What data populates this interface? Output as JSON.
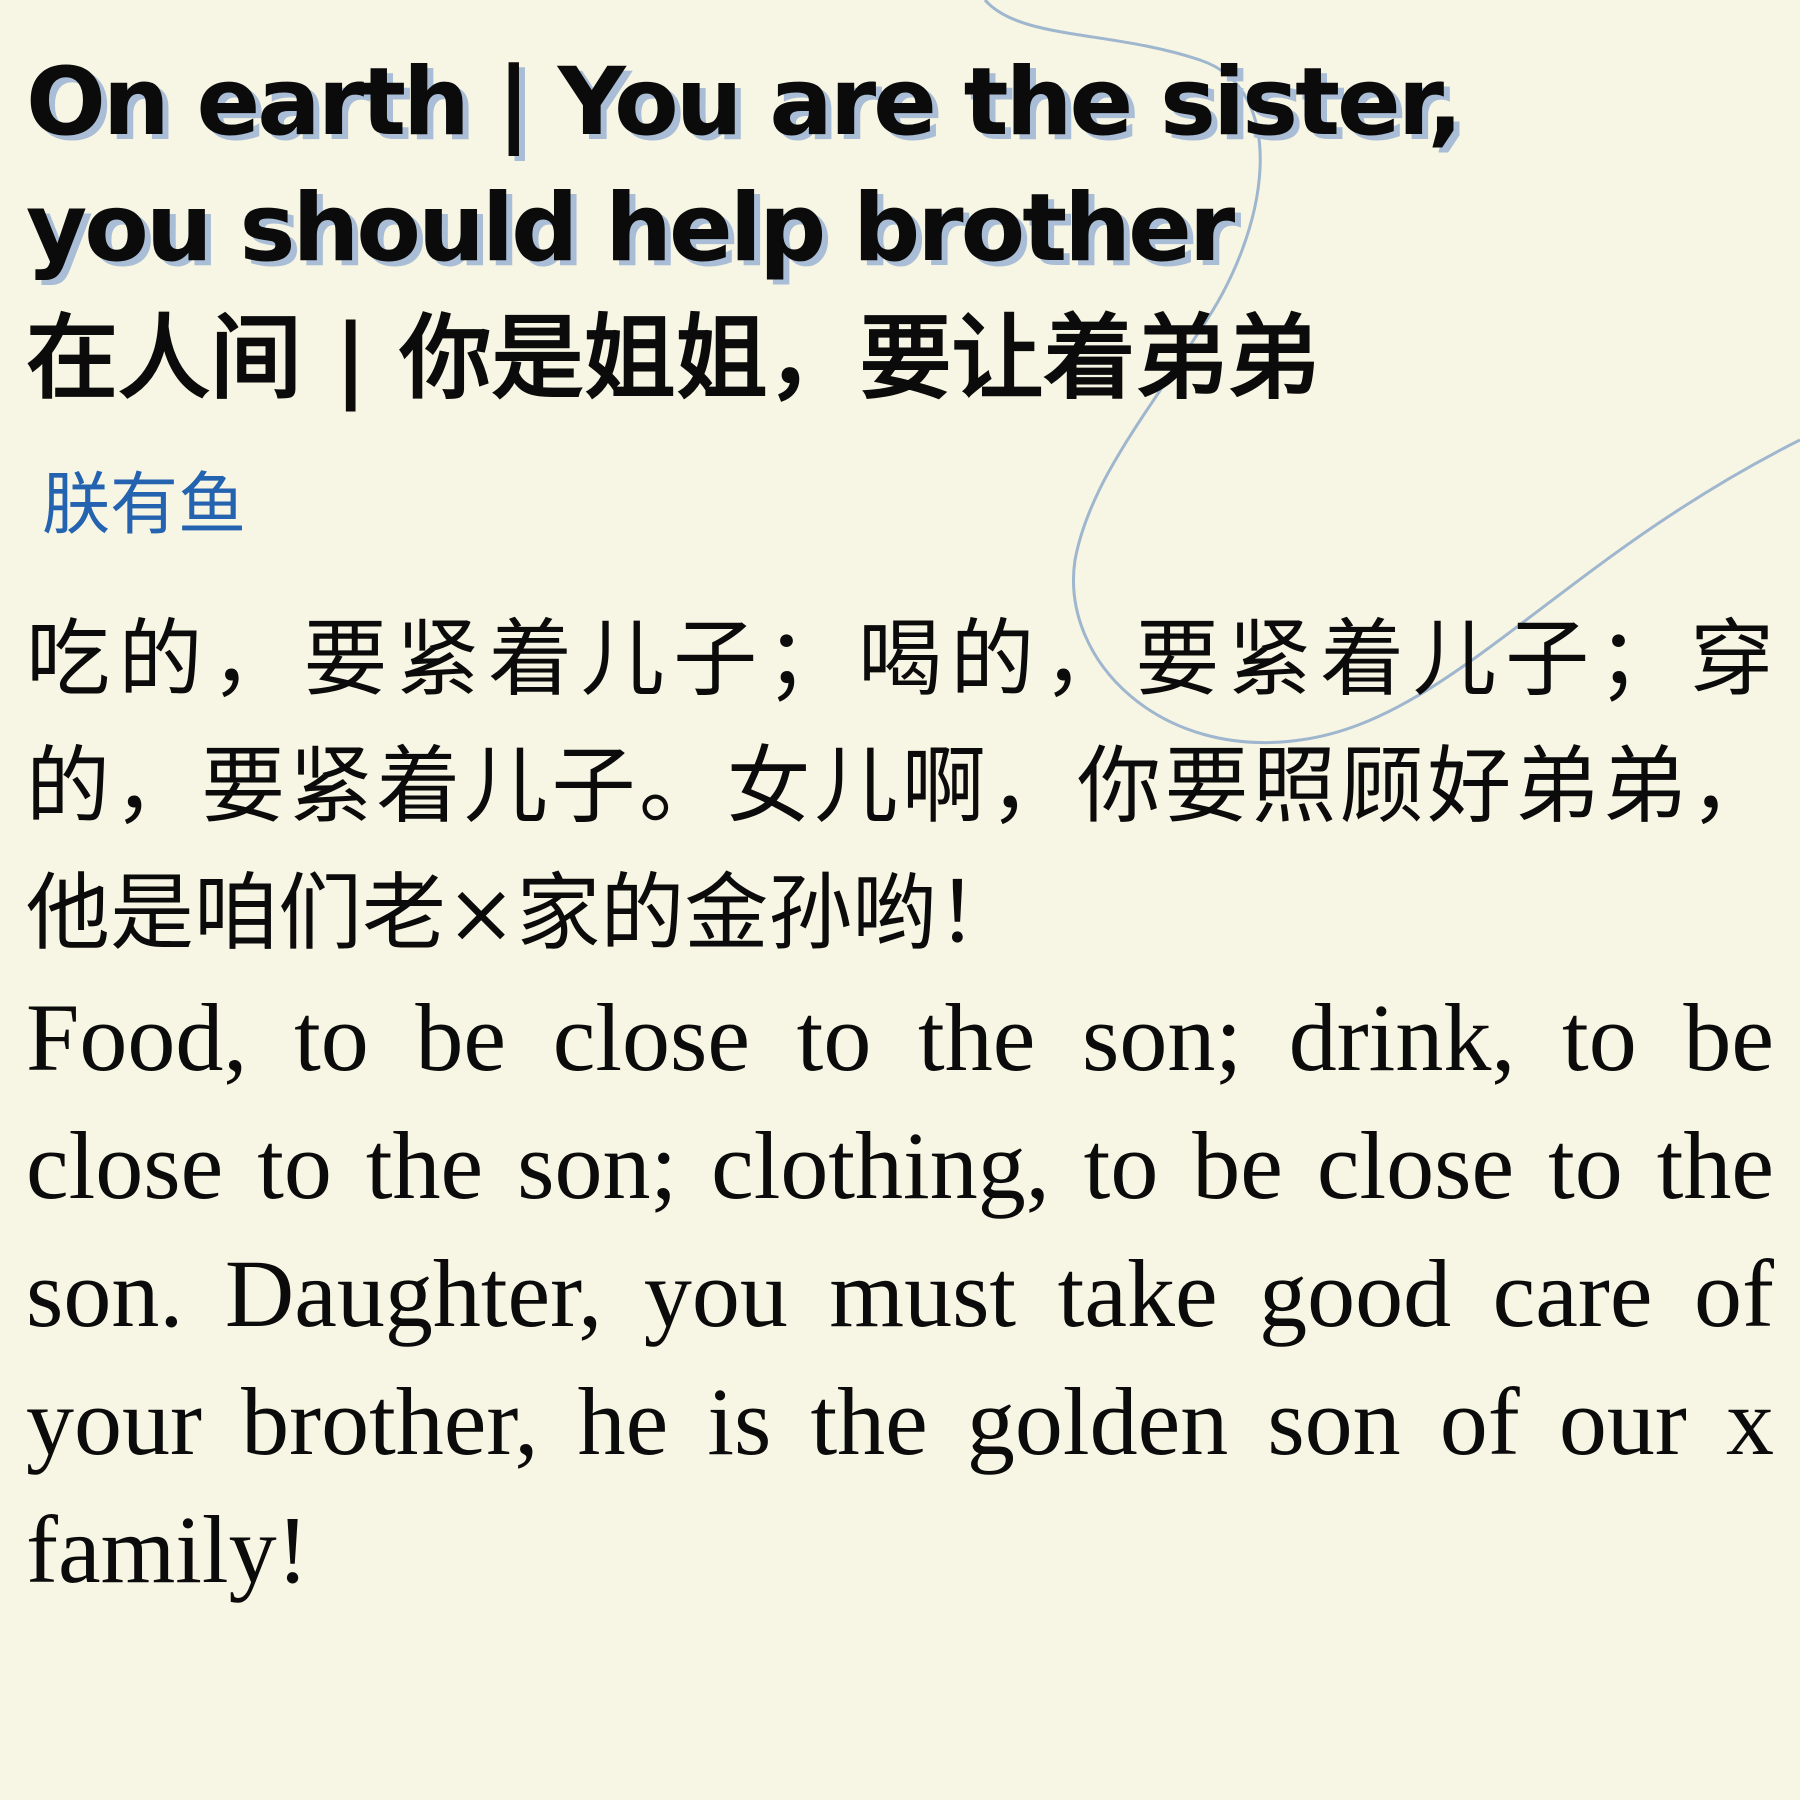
{
  "document": {
    "title_en_line1": "On earth | You are the sister,",
    "title_en_line2": "you should help brother",
    "title_zh": "在人间 | 你是姐姐，要让着弟弟",
    "author": "朕有鱼",
    "body_zh": "吃的，要紧着儿子；喝的，要紧着儿子；穿的，要紧着儿子。女儿啊，你要照顾好弟弟，他是咱们老×家的金孙哟！",
    "body_en": "Food, to be close to the son; drink, to be close to the son; clothing, to be close to the son. Daughter, you must take good care of your brother, he is the golden son of our x family!"
  },
  "colors": {
    "background": "#f7f5e3",
    "text": "#0b0b0b",
    "author": "#2463b0",
    "title_shadow": "#a9bdd6",
    "decorative_line": "#9fb6cf"
  }
}
